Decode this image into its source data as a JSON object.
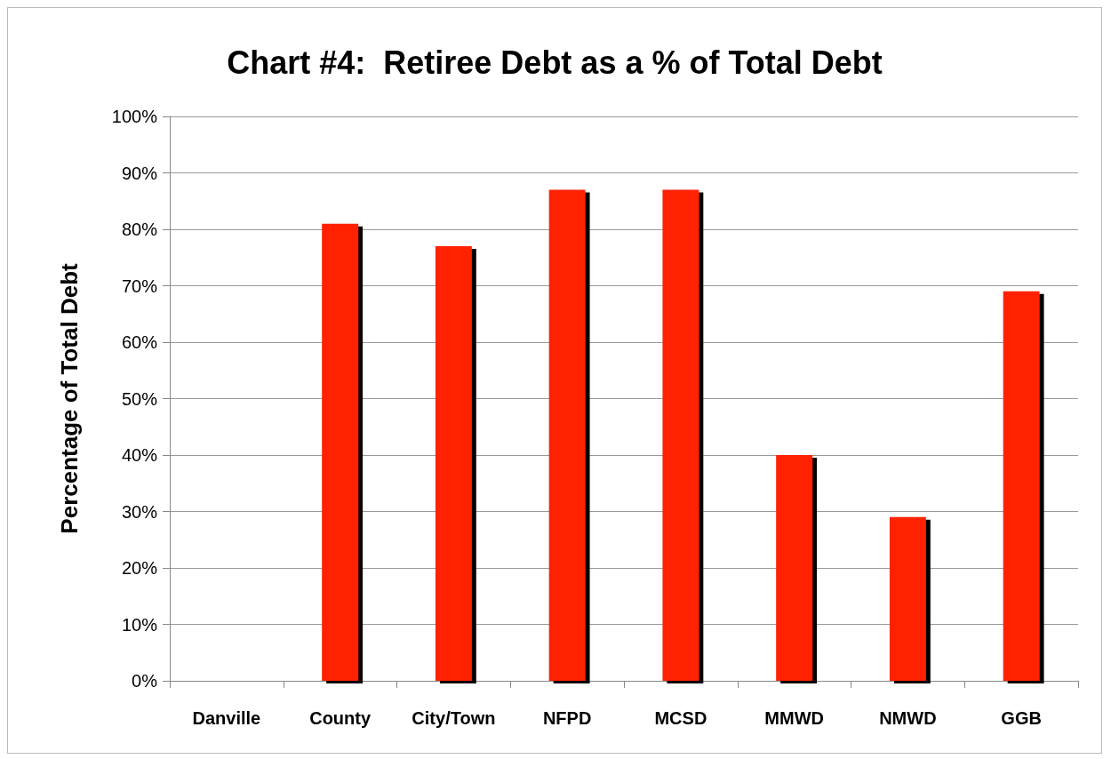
{
  "chart_data": {
    "type": "bar",
    "title": "Chart #4:  Retiree Debt as a % of Total Debt",
    "ylabel": "Percentage of Total Debt",
    "categories": [
      "Danville",
      "County",
      "City/Town",
      "NFPD",
      "MCSD",
      "MMWD",
      "NMWD",
      "GGB"
    ],
    "values": [
      0,
      81,
      77,
      87,
      87,
      40,
      29,
      69
    ],
    "color": "#ff2200",
    "ylim": [
      0,
      100
    ],
    "yticks": [
      {
        "value": 0,
        "label": "0%"
      },
      {
        "value": 10,
        "label": "10%"
      },
      {
        "value": 20,
        "label": "20%"
      },
      {
        "value": 30,
        "label": "30%"
      },
      {
        "value": 40,
        "label": "40%"
      },
      {
        "value": 50,
        "label": "50%"
      },
      {
        "value": 60,
        "label": "60%"
      },
      {
        "value": 70,
        "label": "70%"
      },
      {
        "value": 80,
        "label": "80%"
      },
      {
        "value": 90,
        "label": "90%"
      },
      {
        "value": 100,
        "label": "100%"
      }
    ],
    "grid": "y"
  }
}
